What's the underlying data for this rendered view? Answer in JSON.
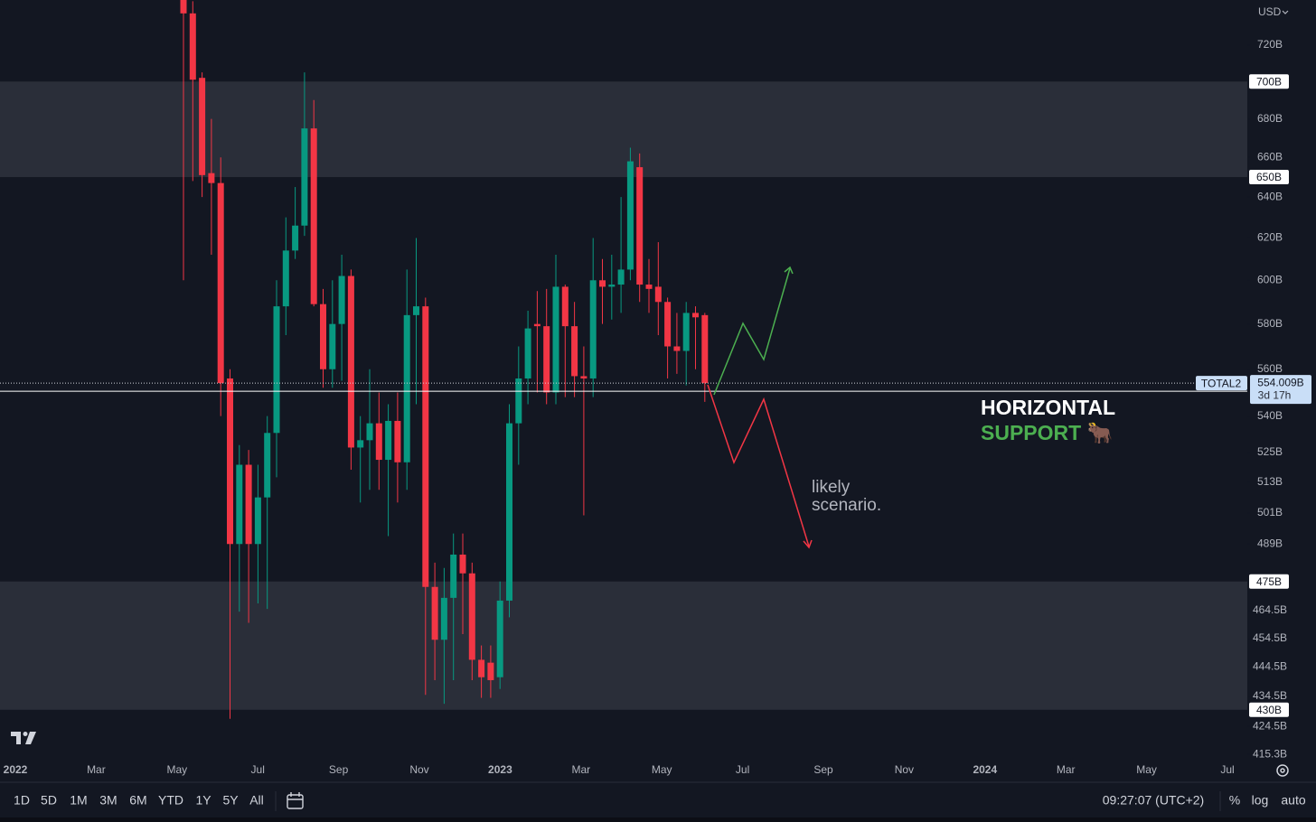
{
  "chart_data": {
    "type": "candlestick",
    "currency": "USD",
    "log_scale": true,
    "up_color": "#089981",
    "down_color": "#f23645",
    "ylim": [
      413.1,
      745.7
    ],
    "yticks": [
      {
        "value": 720,
        "label": "720B"
      },
      {
        "value": 680,
        "label": "680B"
      },
      {
        "value": 660,
        "label": "660B"
      },
      {
        "value": 640,
        "label": "640B"
      },
      {
        "value": 620,
        "label": "620B"
      },
      {
        "value": 600,
        "label": "600B"
      },
      {
        "value": 580,
        "label": "580B"
      },
      {
        "value": 560,
        "label": "560B"
      },
      {
        "value": 540,
        "label": "540B"
      },
      {
        "value": 525,
        "label": "525B"
      },
      {
        "value": 513,
        "label": "513B"
      },
      {
        "value": 501,
        "label": "501B"
      },
      {
        "value": 489,
        "label": "489B"
      },
      {
        "value": 464.5,
        "label": "464.5B"
      },
      {
        "value": 454.5,
        "label": "454.5B"
      },
      {
        "value": 444.5,
        "label": "444.5B"
      },
      {
        "value": 434.5,
        "label": "434.5B"
      },
      {
        "value": 424.5,
        "label": "424.5B"
      },
      {
        "value": 415.3,
        "label": "415.3B"
      }
    ],
    "zones": [
      {
        "low": {
          "value": 650,
          "label": "650B"
        },
        "high": {
          "value": 700,
          "label": "700B"
        }
      },
      {
        "low": {
          "value": 430,
          "label": "430B"
        },
        "high": {
          "value": 475,
          "label": "475B"
        }
      }
    ],
    "categories": [
      "2022",
      "Mar",
      "May",
      "Jul",
      "Sep",
      "Nov",
      "2023",
      "Mar",
      "May",
      "Jul",
      "Sep",
      "Nov",
      "2024",
      "Mar",
      "May",
      "Jul"
    ],
    "candles": {
      "open": [
        748,
        738,
        702,
        652,
        647,
        556,
        489,
        520,
        489,
        507,
        533,
        588,
        614,
        626,
        675,
        589,
        560,
        580,
        602,
        527,
        530,
        537,
        522,
        538,
        521,
        584,
        588,
        473,
        454,
        469,
        485,
        478,
        447,
        446,
        441,
        468,
        537,
        556,
        580,
        579,
        550,
        597,
        579,
        557,
        556,
        600,
        597,
        598,
        605,
        655,
        598,
        597,
        590,
        570,
        568,
        585,
        584
      ],
      "high": [
        760,
        745,
        705,
        680,
        660,
        560,
        528,
        526,
        520,
        540,
        600,
        630,
        645,
        705,
        690,
        596,
        600,
        612,
        605,
        540,
        560,
        550,
        545,
        550,
        605,
        620,
        592,
        482,
        480,
        493,
        493,
        482,
        452,
        452,
        475,
        545,
        570,
        586,
        595,
        596,
        612,
        598,
        590,
        570,
        620,
        610,
        612,
        640,
        665,
        662,
        610,
        618,
        592,
        585,
        590,
        588,
        585
      ],
      "low": [
        600,
        648,
        640,
        612,
        540,
        427,
        464,
        460,
        467,
        465,
        515,
        575,
        610,
        621,
        588,
        552,
        552,
        555,
        518,
        505,
        510,
        510,
        492,
        505,
        510,
        545,
        435,
        440,
        432,
        440,
        456,
        440,
        434,
        434,
        437,
        462,
        520,
        545,
        550,
        545,
        545,
        548,
        548,
        500,
        548,
        580,
        582,
        585,
        600,
        590,
        585,
        575,
        556,
        558,
        553,
        560,
        546
      ],
      "close": [
        738,
        701,
        651,
        647,
        554,
        489,
        520,
        489,
        507,
        533,
        588,
        614,
        626,
        675,
        589,
        560,
        580,
        602,
        527,
        530,
        537,
        522,
        538,
        521,
        584,
        588,
        473,
        454,
        469,
        485,
        478,
        447,
        441,
        440,
        468,
        537,
        556,
        578,
        579,
        550,
        597,
        579,
        557,
        556,
        600,
        597,
        598,
        605,
        658,
        598,
        596,
        590,
        570,
        568,
        585,
        583,
        554.009
      ]
    },
    "price": {
      "symbol": "TOTAL2",
      "value": 554.009,
      "label": "554.009B",
      "countdown": "3d 17h"
    },
    "support_level": 550.5,
    "annotations": {
      "support_title": "HORIZONTAL",
      "support_subtitle": "SUPPORT 🐂",
      "scenario": [
        "likely",
        "scenario."
      ]
    },
    "toolbar": {
      "ranges": [
        "1D",
        "5D",
        "1M",
        "3M",
        "6M",
        "YTD",
        "1Y",
        "5Y",
        "All"
      ],
      "clock": "09:27:07 (UTC+2)",
      "options": [
        "%",
        "log",
        "auto"
      ]
    }
  }
}
